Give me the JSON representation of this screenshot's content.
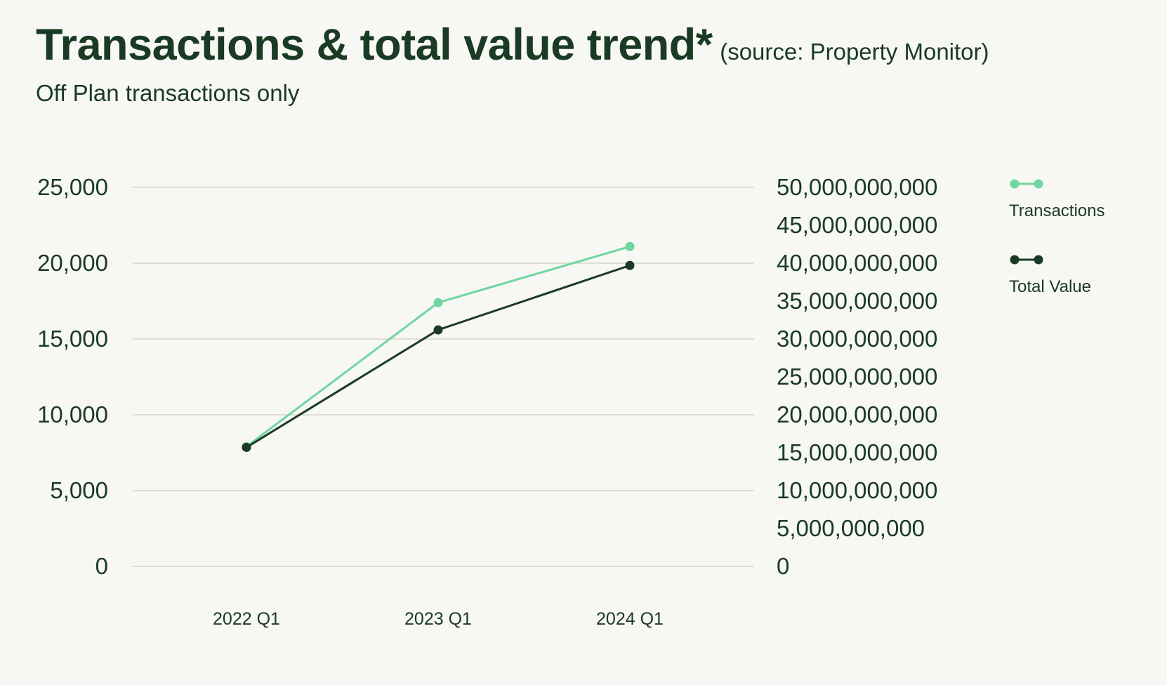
{
  "header": {
    "title": "Transactions & total value trend*",
    "source": "(source: Property Monitor)",
    "subtitle": "Off Plan transactions only"
  },
  "colors": {
    "transactions": "#6fd6a0",
    "total_value": "#1a3a24",
    "grid": "#deded3",
    "background": "#f7f7f3"
  },
  "chart_data": {
    "type": "line",
    "title": "Transactions & total value trend*",
    "subtitle": "Off Plan transactions only",
    "categories": [
      "2022 Q1",
      "2023 Q1",
      "2024 Q1"
    ],
    "left_axis": {
      "ylim": [
        0,
        25000
      ],
      "ticks": [
        0,
        5000,
        10000,
        15000,
        20000,
        25000
      ],
      "tick_labels": [
        "0",
        "5,000",
        "10,000",
        "15,000",
        "20,000",
        "25,000"
      ]
    },
    "right_axis": {
      "ylim": [
        0,
        50000000000
      ],
      "ticks": [
        0,
        5000000000,
        10000000000,
        15000000000,
        20000000000,
        25000000000,
        30000000000,
        35000000000,
        40000000000,
        45000000000,
        50000000000
      ],
      "tick_labels": [
        "0",
        "5,000,000,000",
        "10,000,000,000",
        "15,000,000,000",
        "20,000,000,000",
        "25,000,000,000",
        "30,000,000,000",
        "35,000,000,000",
        "40,000,000,000",
        "45,000,000,000",
        "50,000,000,000"
      ]
    },
    "series": [
      {
        "name": "Transactions",
        "axis": "left",
        "color": "#6fd6a0",
        "values": [
          7900,
          17400,
          21100
        ]
      },
      {
        "name": "Total Value",
        "axis": "right",
        "color": "#1a3a24",
        "values": [
          15700000000,
          31200000000,
          39700000000
        ]
      }
    ],
    "legend_position": "right",
    "grid": true
  }
}
